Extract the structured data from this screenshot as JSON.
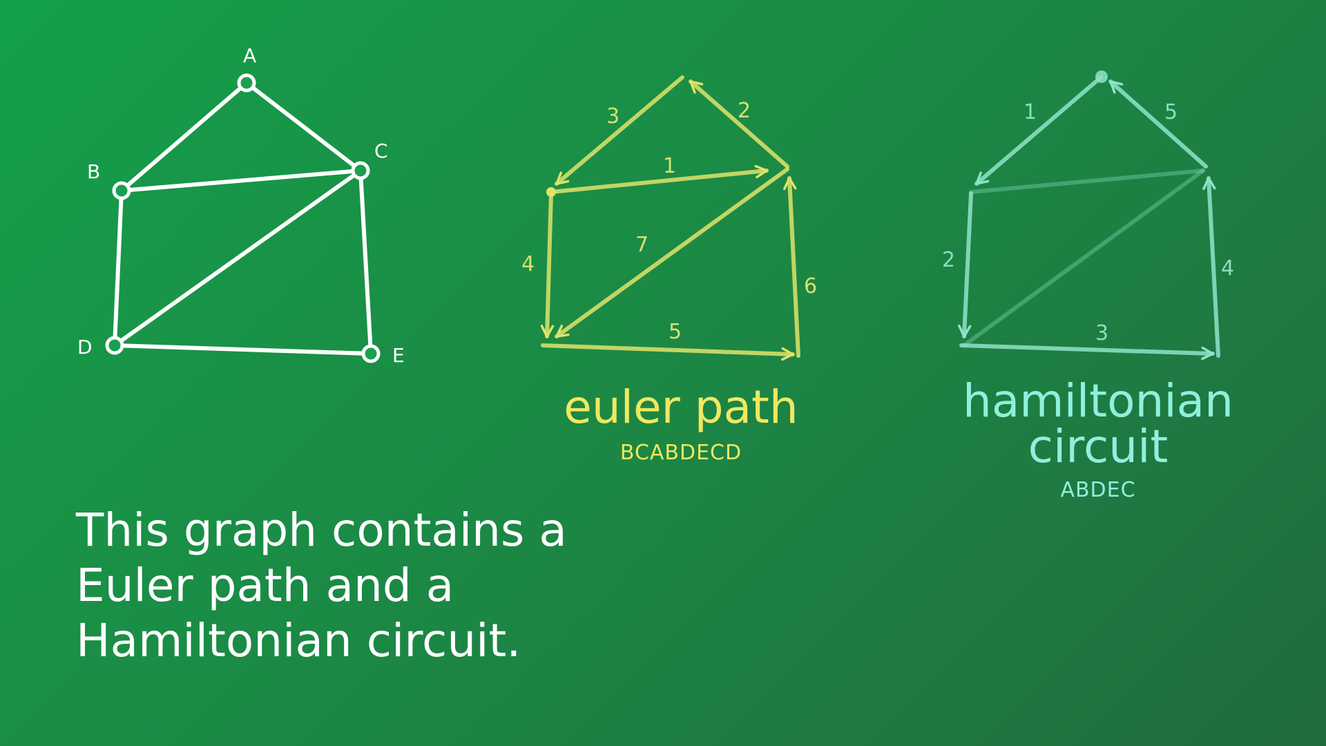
{
  "graph": {
    "vertices": [
      {
        "id": "A",
        "label": "A"
      },
      {
        "id": "B",
        "label": "B"
      },
      {
        "id": "C",
        "label": "C"
      },
      {
        "id": "D",
        "label": "D"
      },
      {
        "id": "E",
        "label": "E"
      }
    ],
    "edges": [
      [
        "A",
        "B"
      ],
      [
        "A",
        "C"
      ],
      [
        "B",
        "C"
      ],
      [
        "B",
        "D"
      ],
      [
        "C",
        "D"
      ],
      [
        "C",
        "E"
      ],
      [
        "D",
        "E"
      ]
    ]
  },
  "euler": {
    "title": "euler path",
    "sequence": "BCABDECD",
    "color": "#dfe36a",
    "edge_order": [
      "1",
      "2",
      "3",
      "4",
      "5",
      "6",
      "7"
    ]
  },
  "hamiltonian": {
    "title_line1": "hamiltonian",
    "title_line2": "circuit",
    "sequence": "ABDEC",
    "color": "#8fe3c8",
    "edge_order": [
      "1",
      "2",
      "3",
      "4",
      "5"
    ]
  },
  "statement": {
    "line1": "This graph contains a",
    "line2": "Euler path and a",
    "line3": "Hamiltonian circuit."
  }
}
